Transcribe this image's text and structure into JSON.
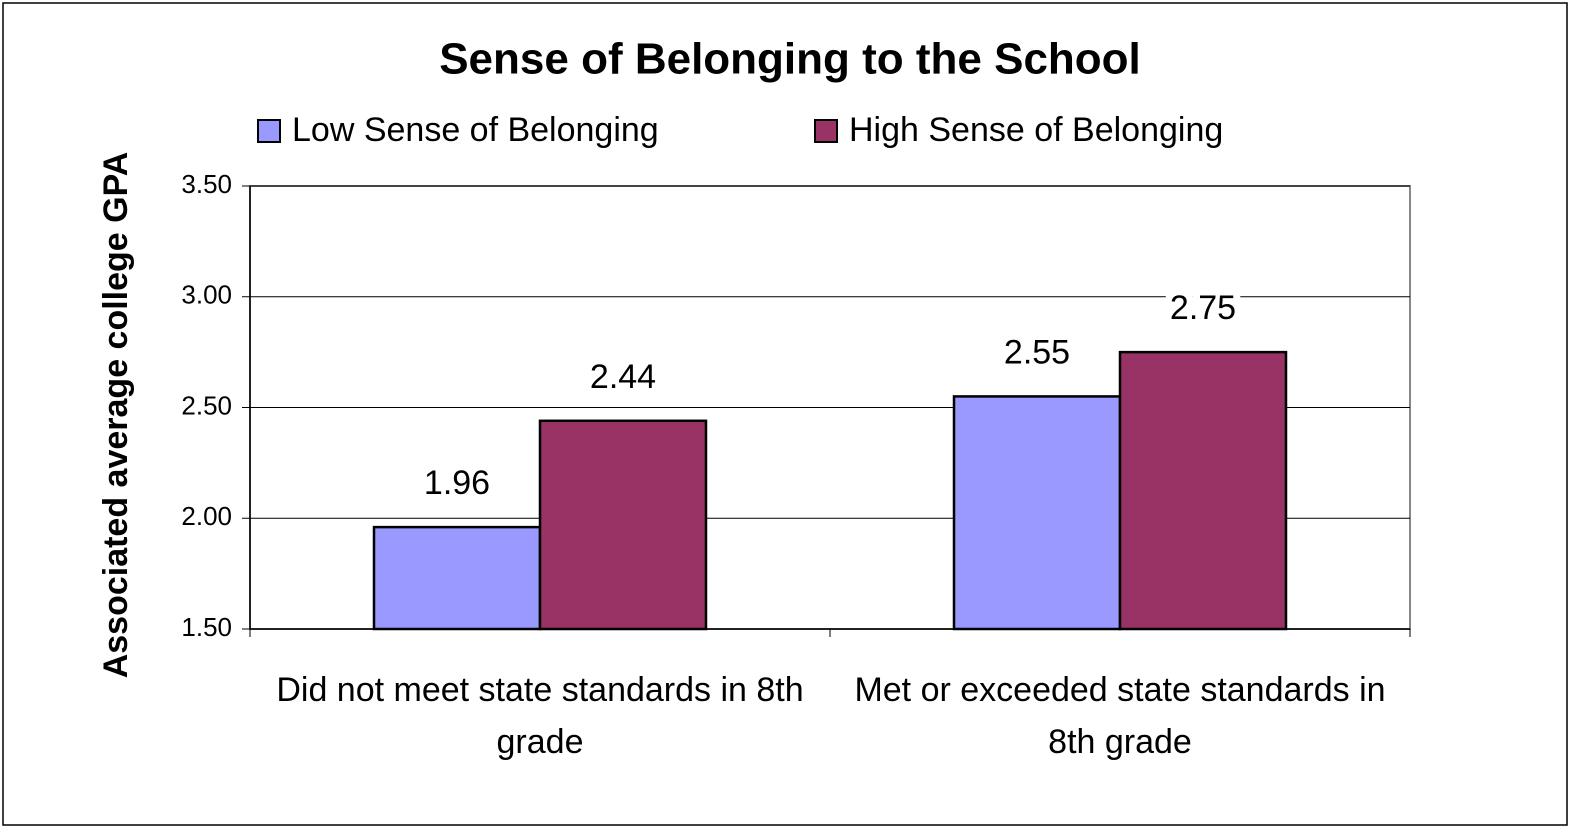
{
  "chart_data": {
    "type": "bar",
    "title": "Sense of Belonging to the School",
    "y_label": "Associated average college GPA",
    "categories": [
      "Did not meet state standards in 8th grade",
      "Met or exceeded state standards in 8th grade"
    ],
    "series": [
      {
        "name": "Low Sense of Belonging",
        "color": "#9999ff",
        "values": [
          1.96,
          2.55
        ]
      },
      {
        "name": "High Sense of Belonging",
        "color": "#993366",
        "values": [
          2.44,
          2.75
        ]
      }
    ],
    "ylim": [
      1.5,
      3.5
    ],
    "yticks": [
      {
        "value": 1.5,
        "label": "1.50"
      },
      {
        "value": 2,
        "label": "2.00"
      },
      {
        "value": 2.5,
        "label": "2.50"
      },
      {
        "value": 3,
        "label": "3.00"
      },
      {
        "value": 3.5,
        "label": "3.50"
      }
    ],
    "grid": true,
    "legend": "top"
  }
}
